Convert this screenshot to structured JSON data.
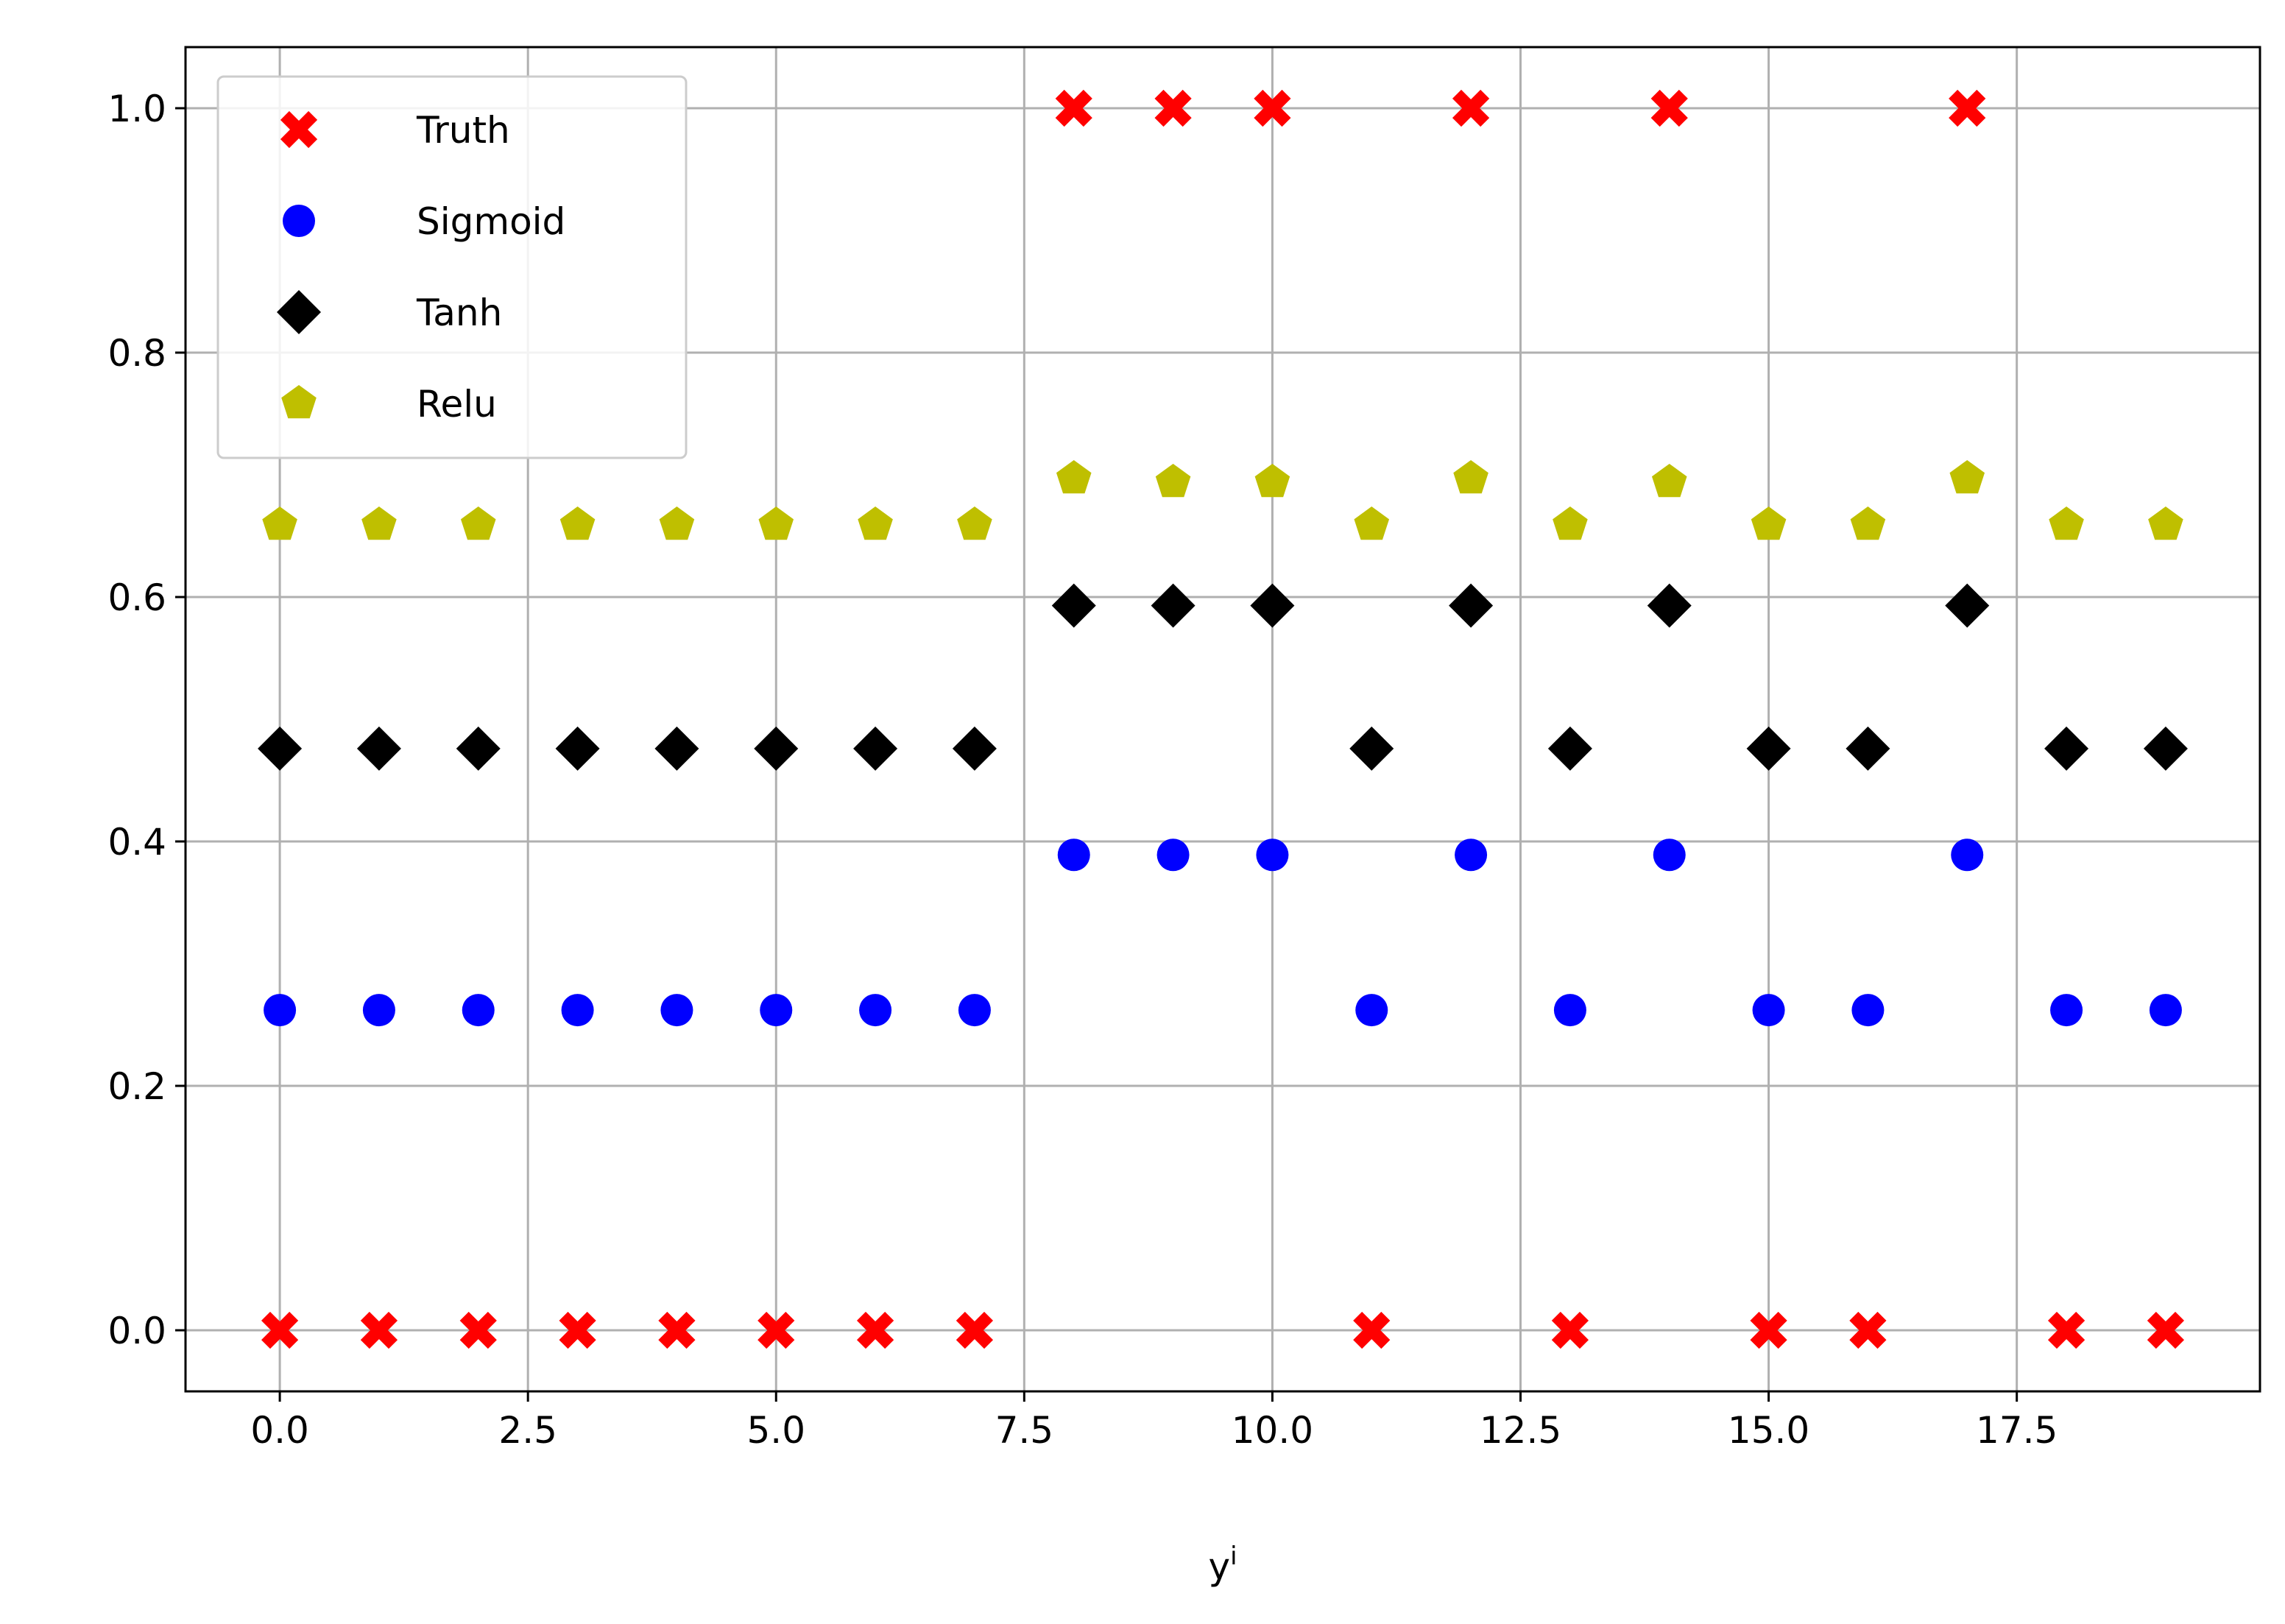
{
  "chart_data": {
    "type": "scatter",
    "title": "",
    "xlabel": "y",
    "xlabel_superscript": "i",
    "ylabel": "",
    "xlim": [
      -0.95,
      19.95
    ],
    "ylim": [
      -0.05,
      1.05
    ],
    "xticks": [
      0.0,
      2.5,
      5.0,
      7.5,
      10.0,
      12.5,
      15.0,
      17.5
    ],
    "xtick_labels": [
      "0.0",
      "2.5",
      "5.0",
      "7.5",
      "10.0",
      "12.5",
      "15.0",
      "17.5"
    ],
    "yticks": [
      0.0,
      0.2,
      0.4,
      0.6,
      0.8,
      1.0
    ],
    "ytick_labels": [
      "0.0",
      "0.2",
      "0.4",
      "0.6",
      "0.8",
      "1.0"
    ],
    "grid": true,
    "legend_position": "upper-left",
    "x": [
      0,
      1,
      2,
      3,
      4,
      5,
      6,
      7,
      8,
      9,
      10,
      11,
      12,
      13,
      14,
      15,
      16,
      17,
      18,
      19
    ],
    "series": [
      {
        "name": "Truth",
        "marker": "x-filled",
        "color": "#ff0000",
        "values": [
          0,
          0,
          0,
          0,
          0,
          0,
          0,
          0,
          1,
          1,
          1,
          0,
          1,
          0,
          1,
          0,
          0,
          1,
          0,
          0
        ]
      },
      {
        "name": "Sigmoid",
        "marker": "circle",
        "color": "#0000ff",
        "values": [
          0.262,
          0.262,
          0.262,
          0.262,
          0.262,
          0.262,
          0.262,
          0.262,
          0.389,
          0.389,
          0.389,
          0.262,
          0.389,
          0.262,
          0.389,
          0.262,
          0.262,
          0.389,
          0.262,
          0.262
        ]
      },
      {
        "name": "Tanh",
        "marker": "diamond",
        "color": "#000000",
        "values": [
          0.476,
          0.476,
          0.476,
          0.476,
          0.476,
          0.476,
          0.476,
          0.476,
          0.593,
          0.593,
          0.593,
          0.476,
          0.593,
          0.476,
          0.593,
          0.476,
          0.476,
          0.593,
          0.476,
          0.476
        ]
      },
      {
        "name": "Relu",
        "marker": "pentagon",
        "color": "#bfbf00",
        "values": [
          0.659,
          0.659,
          0.659,
          0.659,
          0.659,
          0.659,
          0.659,
          0.659,
          0.697,
          0.694,
          0.694,
          0.659,
          0.697,
          0.659,
          0.694,
          0.659,
          0.659,
          0.697,
          0.659,
          0.659
        ]
      }
    ]
  }
}
